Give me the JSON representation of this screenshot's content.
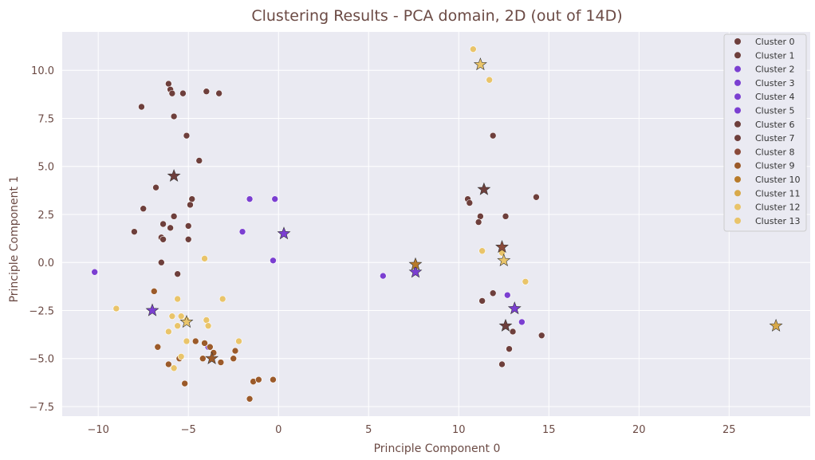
{
  "chart_data": {
    "type": "scatter",
    "title": "Clustering Results - PCA domain, 2D (out of 14D)",
    "xlabel": "Principle Component 0",
    "ylabel": "Principle Component 1",
    "xlim": [
      -12,
      29.5
    ],
    "ylim": [
      -8.0,
      12.0
    ],
    "xticks": [
      -10,
      -5,
      0,
      5,
      10,
      15,
      20,
      25
    ],
    "yticks": [
      -7.5,
      -5.0,
      -2.5,
      0.0,
      2.5,
      5.0,
      7.5,
      10.0
    ],
    "xtick_labels": [
      "−10",
      "−5",
      "0",
      "5",
      "10",
      "15",
      "20",
      "25"
    ],
    "ytick_labels": [
      "−7.5",
      "−5.0",
      "−2.5",
      "0.0",
      "2.5",
      "5.0",
      "7.5",
      "10.0"
    ],
    "grid": true,
    "legend_position": "top-right",
    "series": [
      {
        "name": "Cluster 0",
        "color": "#6e3f3c",
        "marker": "circle",
        "points": [
          [
            -6.1,
            9.3
          ],
          [
            -6.0,
            9.0
          ],
          [
            -5.9,
            8.8
          ],
          [
            -5.3,
            8.8
          ],
          [
            -4.0,
            8.9
          ],
          [
            -3.3,
            8.8
          ],
          [
            -7.6,
            8.1
          ],
          [
            -5.8,
            7.6
          ],
          [
            -5.1,
            6.6
          ],
          [
            -4.4,
            5.3
          ]
        ],
        "centroid": [
          -5.8,
          4.5
        ]
      },
      {
        "name": "Cluster 1",
        "color": "#6e3f3c",
        "marker": "circle",
        "points": [
          [
            -6.8,
            3.9
          ],
          [
            -7.5,
            2.8
          ],
          [
            -5.8,
            2.4
          ],
          [
            -4.8,
            3.3
          ],
          [
            -4.9,
            3.0
          ],
          [
            -6.4,
            2.0
          ],
          [
            -6.0,
            1.8
          ],
          [
            -5.0,
            1.9
          ],
          [
            -8.0,
            1.6
          ],
          [
            -6.5,
            1.3
          ],
          [
            -5.0,
            1.2
          ],
          [
            -6.4,
            1.2
          ],
          [
            -6.5,
            0.0
          ],
          [
            -5.6,
            -0.6
          ]
        ],
        "centroid": null
      },
      {
        "name": "Cluster 2",
        "color": "#7b3fd1",
        "marker": "circle",
        "points": [
          [
            -10.2,
            -0.5
          ],
          [
            -1.6,
            3.3
          ],
          [
            -0.2,
            3.3
          ],
          [
            -2.0,
            1.6
          ],
          [
            -0.3,
            0.1
          ]
        ],
        "centroid": [
          0.3,
          1.5
        ]
      },
      {
        "name": "Cluster 3",
        "color": "#7b3fd1",
        "marker": "circle",
        "points": [
          [
            -3.9,
            -4.4
          ]
        ],
        "centroid": [
          -7.0,
          -2.5
        ]
      },
      {
        "name": "Cluster 4",
        "color": "#7b3fd1",
        "marker": "circle",
        "points": [
          [
            5.8,
            -0.7
          ]
        ],
        "centroid": [
          7.6,
          -0.5
        ]
      },
      {
        "name": "Cluster 5",
        "color": "#7b3fd1",
        "marker": "circle",
        "points": [
          [
            12.7,
            -1.7
          ],
          [
            13.5,
            -3.1
          ]
        ],
        "centroid": [
          13.1,
          -2.4
        ]
      },
      {
        "name": "Cluster 6",
        "color": "#6e3f3c",
        "marker": "circle",
        "points": [
          [
            11.9,
            6.6
          ],
          [
            10.5,
            3.3
          ],
          [
            10.6,
            3.1
          ],
          [
            11.2,
            2.4
          ],
          [
            11.1,
            2.1
          ],
          [
            12.6,
            2.4
          ],
          [
            14.3,
            3.4
          ]
        ],
        "centroid": [
          11.4,
          3.8
        ]
      },
      {
        "name": "Cluster 7",
        "color": "#6e3f3c",
        "marker": "circle",
        "points": [
          [
            11.9,
            -1.6
          ],
          [
            11.3,
            -2.0
          ],
          [
            13.0,
            -3.6
          ],
          [
            12.8,
            -4.5
          ],
          [
            14.6,
            -3.8
          ],
          [
            12.4,
            -5.3
          ]
        ],
        "centroid": [
          12.6,
          -3.3
        ]
      },
      {
        "name": "Cluster 8",
        "color": "#8a4a3a",
        "marker": "circle",
        "points": [],
        "centroid": [
          12.4,
          0.8
        ]
      },
      {
        "name": "Cluster 9",
        "color": "#9b5a2a",
        "marker": "circle",
        "points": [
          [
            -6.9,
            -1.5
          ],
          [
            -6.7,
            -4.4
          ],
          [
            -6.1,
            -5.3
          ],
          [
            -5.5,
            -5.0
          ],
          [
            -5.2,
            -6.3
          ],
          [
            -4.6,
            -4.1
          ],
          [
            -4.2,
            -5.0
          ],
          [
            -4.1,
            -4.2
          ],
          [
            -3.8,
            -4.4
          ],
          [
            -3.6,
            -4.7
          ],
          [
            -3.2,
            -5.2
          ],
          [
            -2.5,
            -5.0
          ],
          [
            -2.4,
            -4.6
          ],
          [
            -1.4,
            -6.2
          ],
          [
            -1.1,
            -6.1
          ],
          [
            -1.6,
            -7.1
          ],
          [
            -0.3,
            -6.1
          ]
        ],
        "centroid": [
          -3.7,
          -5.0
        ]
      },
      {
        "name": "Cluster 10",
        "color": "#b87b2a",
        "marker": "circle",
        "points": [],
        "centroid": [
          7.6,
          -0.1
        ]
      },
      {
        "name": "Cluster 11",
        "color": "#d8a94a",
        "marker": "circle",
        "points": [],
        "centroid": [
          27.6,
          -3.3
        ]
      },
      {
        "name": "Cluster 12",
        "color": "#e9c46a",
        "marker": "circle",
        "points": [
          [
            -9.0,
            -2.4
          ],
          [
            -5.6,
            -1.9
          ],
          [
            -3.1,
            -1.9
          ],
          [
            -4.1,
            0.2
          ],
          [
            -5.9,
            -2.8
          ],
          [
            -5.4,
            -2.8
          ],
          [
            -5.1,
            -3.0
          ],
          [
            -5.6,
            -3.3
          ],
          [
            -6.1,
            -3.6
          ],
          [
            -4.0,
            -3.0
          ],
          [
            -3.9,
            -3.3
          ],
          [
            -5.1,
            -4.1
          ],
          [
            -2.2,
            -4.1
          ],
          [
            -5.4,
            -4.9
          ],
          [
            -5.8,
            -5.5
          ]
        ],
        "centroid": [
          -5.1,
          -3.1
        ]
      },
      {
        "name": "Cluster 13",
        "color": "#e9c46a",
        "marker": "circle",
        "points": [
          [
            10.8,
            11.1
          ],
          [
            11.7,
            9.5
          ],
          [
            11.3,
            0.6
          ],
          [
            12.4,
            0.5
          ],
          [
            13.7,
            -1.0
          ]
        ],
        "centroid": [
          11.2,
          10.3
        ],
        "extra_centroid": [
          12.5,
          0.1
        ]
      }
    ]
  }
}
